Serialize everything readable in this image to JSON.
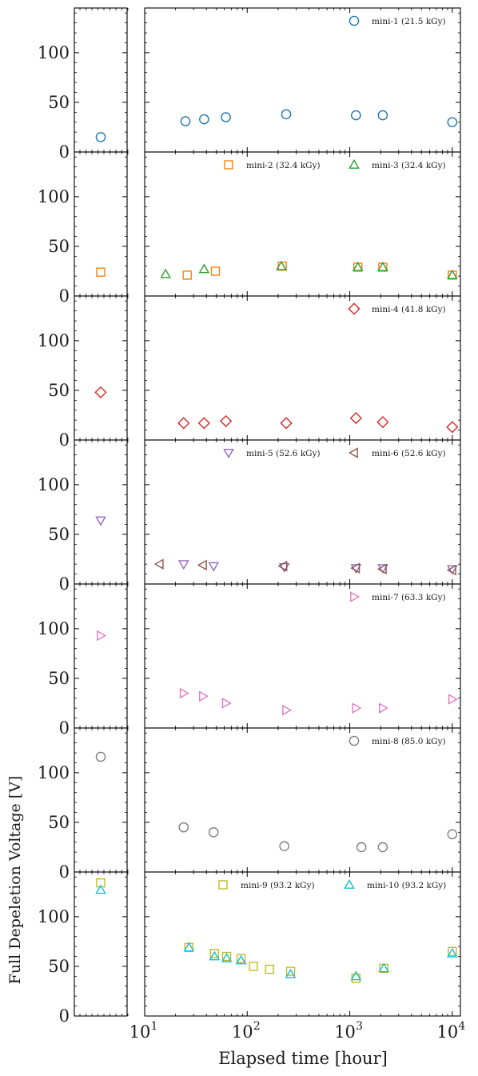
{
  "figure": {
    "ylabel": "Full Depeletion Voltage [V]",
    "xlabel": "Elapsed time [hour]",
    "ytick_labels": [
      "0",
      "50",
      "100"
    ],
    "xtick_labels": [
      {
        "base": "10",
        "exp": "1"
      },
      {
        "base": "10",
        "exp": "2"
      },
      {
        "base": "10",
        "exp": "3"
      },
      {
        "base": "10",
        "exp": "4"
      }
    ]
  },
  "chart_data": {
    "type": "scatter",
    "x_scale": "log",
    "xlim": [
      10,
      12000
    ],
    "ylim": [
      0,
      145
    ],
    "grid": false,
    "panels": [
      {
        "series": [
          {
            "name": "mini-1 (21.5 kGy)",
            "marker": "circle",
            "color": "#1f77b4",
            "inset": [
              15
            ],
            "x": [
              25,
              38,
              62,
              240,
              1150,
              2100,
              10000
            ],
            "y": [
              31,
              33,
              35,
              38,
              37,
              37,
              30
            ]
          }
        ]
      },
      {
        "series": [
          {
            "name": "mini-2 (32.4 kGy)",
            "marker": "square",
            "color": "#ff7f0e",
            "inset": [
              24
            ],
            "x": [
              26,
              49,
              220,
              1200,
              2100,
              10000
            ],
            "y": [
              21,
              25,
              30,
              29,
              29,
              21
            ]
          },
          {
            "name": "mini-3 (32.4 kGy)",
            "marker": "triangle-up",
            "color": "#2ca02c",
            "inset": [],
            "x": [
              16,
              38,
              215,
              1200,
              2100,
              10000
            ],
            "y": [
              22,
              27,
              30,
              29,
              29,
              21
            ]
          }
        ]
      },
      {
        "series": [
          {
            "name": "mini-4 (41.8 kGy)",
            "marker": "diamond",
            "color": "#d62728",
            "inset": [
              48
            ],
            "x": [
              24,
              38,
              62,
              240,
              1150,
              2100,
              10000
            ],
            "y": [
              17,
              17,
              19,
              17,
              22,
              18,
              13
            ]
          }
        ]
      },
      {
        "series": [
          {
            "name": "mini-5 (52.6 kGy)",
            "marker": "triangle-down",
            "color": "#9467bd",
            "inset": [
              64
            ],
            "x": [
              24,
              47,
              230,
              1150,
              2100,
              10000
            ],
            "y": [
              20,
              18,
              17,
              16,
              16,
              15
            ]
          },
          {
            "name": "mini-6 (52.6 kGy)",
            "marker": "triangle-left",
            "color": "#8c564b",
            "inset": [],
            "x": [
              14,
              37,
              225,
              1150,
              2100,
              10000
            ],
            "y": [
              20,
              19,
              18,
              16,
              15,
              14
            ]
          }
        ]
      },
      {
        "series": [
          {
            "name": "mini-7 (63.3 kGy)",
            "marker": "triangle-right",
            "color": "#e377c2",
            "inset": [
              93
            ],
            "x": [
              24,
              37,
              62,
              240,
              1150,
              2100,
              10000
            ],
            "y": [
              35,
              32,
              25,
              18,
              20,
              20,
              29
            ]
          }
        ]
      },
      {
        "series": [
          {
            "name": "mini-8 (85.0 kGy)",
            "marker": "circle",
            "color": "#7f7f7f",
            "inset": [
              116
            ],
            "x": [
              24,
              47,
              230,
              1300,
              2100,
              10000
            ],
            "y": [
              45,
              40,
              26,
              25,
              25,
              38
            ]
          }
        ]
      },
      {
        "series": [
          {
            "name": "mini-9 (93.2 kGy)",
            "marker": "square",
            "color": "#bcbd22",
            "inset": [
              134
            ],
            "x": [
              27,
              48,
              63,
              87,
              115,
              165,
              265,
              1150,
              2150,
              10000
            ],
            "y": [
              69,
              63,
              60,
              58,
              50,
              47,
              45,
              38,
              48,
              65
            ]
          },
          {
            "name": "mini-10 (93.2 kGy)",
            "marker": "triangle-up",
            "color": "#17becf",
            "inset": [
              127
            ],
            "x": [
              27,
              48,
              63,
              87,
              265,
              1150,
              2150,
              10000
            ],
            "y": [
              69,
              60,
              58,
              56,
              42,
              40,
              48,
              63
            ]
          }
        ]
      }
    ]
  }
}
